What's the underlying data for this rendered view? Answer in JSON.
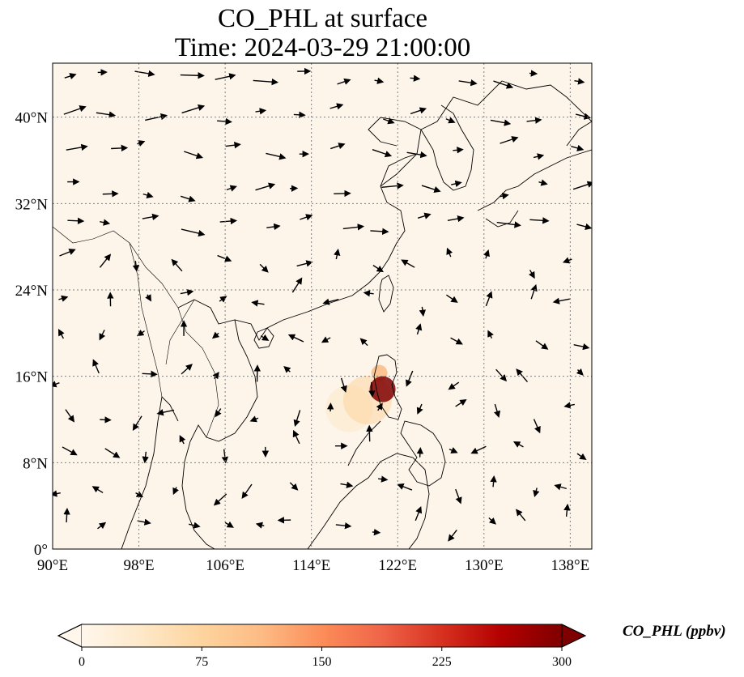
{
  "title": {
    "line1": "CO_PHL at surface",
    "line2": "Time: 2024-03-29 21:00:00"
  },
  "map": {
    "extent": {
      "lon_min": 90,
      "lon_max": 140,
      "lat_min": 0,
      "lat_max": 45
    },
    "background_color": "#fdf5ea",
    "gridlines": true,
    "x_ticks": [
      {
        "lon": 90,
        "label": "90°E"
      },
      {
        "lon": 98,
        "label": "98°E"
      },
      {
        "lon": 106,
        "label": "106°E"
      },
      {
        "lon": 114,
        "label": "114°E"
      },
      {
        "lon": 122,
        "label": "122°E"
      },
      {
        "lon": 130,
        "label": "130°E"
      },
      {
        "lon": 138,
        "label": "138°E"
      }
    ],
    "y_ticks": [
      {
        "lat": 0,
        "label": "0°"
      },
      {
        "lat": 8,
        "label": "8°N"
      },
      {
        "lat": 16,
        "label": "16°N"
      },
      {
        "lat": 24,
        "label": "24°N"
      },
      {
        "lat": 32,
        "label": "32°N"
      },
      {
        "lat": 40,
        "label": "40°N"
      }
    ],
    "plume": [
      {
        "lon": 120.6,
        "lat": 14.8,
        "value": 300
      },
      {
        "lon": 120.3,
        "lat": 16.3,
        "value": 120
      },
      {
        "lon": 119.2,
        "lat": 13.8,
        "value": 60
      },
      {
        "lon": 117.5,
        "lat": 13.0,
        "value": 30
      }
    ]
  },
  "colorbar": {
    "title": "CO_PHL (ppbv)",
    "min": 0,
    "max": 300,
    "extend": "both",
    "ticks": [
      "0",
      "75",
      "150",
      "225",
      "300"
    ],
    "colors": [
      "#fff7ec",
      "#fee8c8",
      "#fdd49e",
      "#fdbb84",
      "#fc8d59",
      "#ef6548",
      "#d7301f",
      "#b30000",
      "#7f0000"
    ]
  }
}
